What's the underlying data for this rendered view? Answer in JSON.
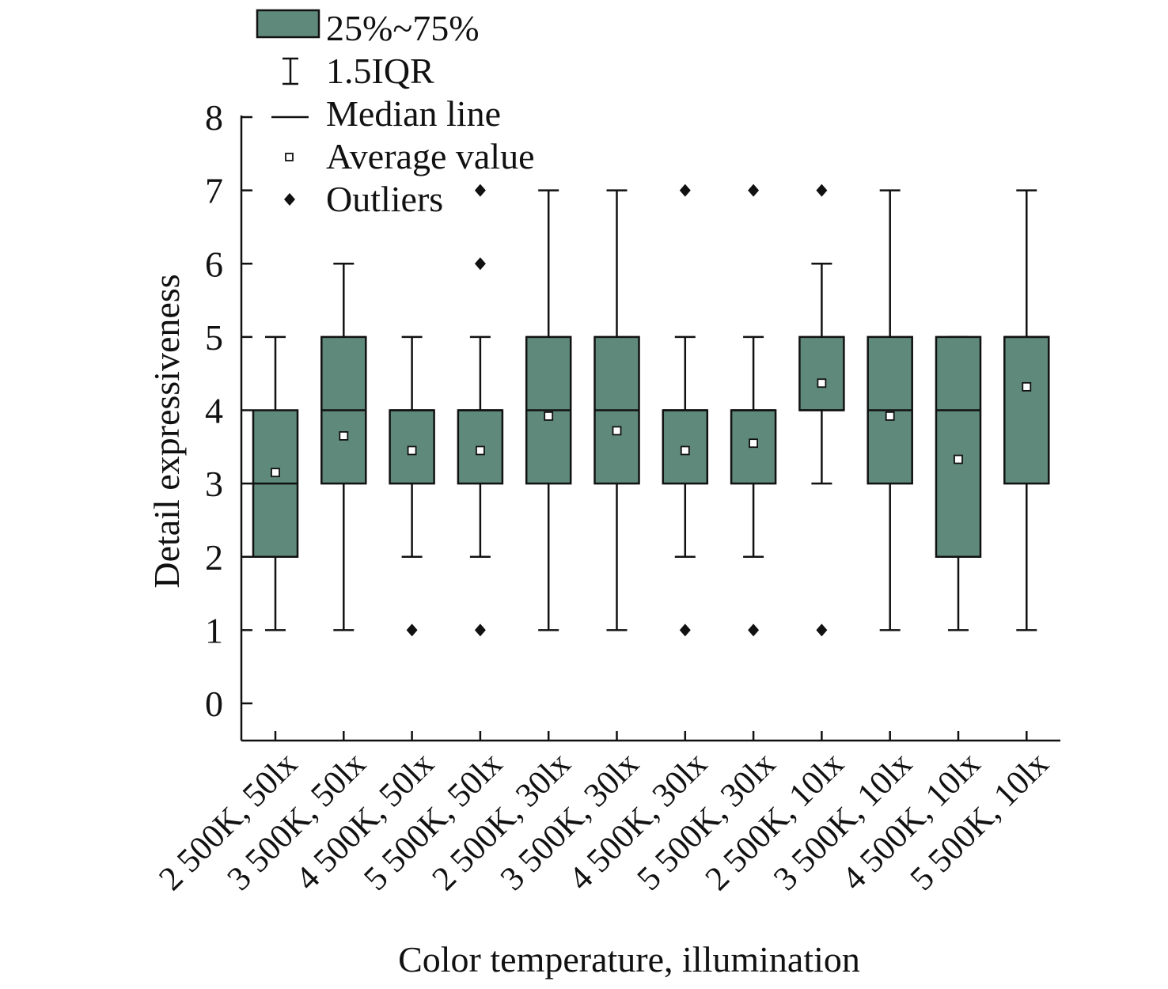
{
  "chart_data": {
    "type": "box",
    "categories": [
      "2 500K, 50lx",
      "3 500K, 50lx",
      "4 500K, 50lx",
      "5 500K, 50lx",
      "2 500K, 30lx",
      "3 500K, 30lx",
      "4 500K, 30lx",
      "5 500K, 30lx",
      "2 500K, 10lx",
      "3 500K, 10lx",
      "4 500K, 10lx",
      "5 500K, 10lx"
    ],
    "boxes": [
      {
        "whisker_low": 1,
        "q1": 2,
        "median": 3,
        "q3": 4,
        "whisker_high": 5,
        "mean": 3.15,
        "outliers": []
      },
      {
        "whisker_low": 1,
        "q1": 3,
        "median": 4,
        "q3": 5,
        "whisker_high": 6,
        "mean": 3.65,
        "outliers": []
      },
      {
        "whisker_low": 2,
        "q1": 3,
        "median": 4,
        "q3": 4,
        "whisker_high": 5,
        "mean": 3.45,
        "outliers": [
          1
        ]
      },
      {
        "whisker_low": 2,
        "q1": 3,
        "median": 4,
        "q3": 4,
        "whisker_high": 5,
        "mean": 3.45,
        "outliers": [
          1,
          6,
          7
        ]
      },
      {
        "whisker_low": 1,
        "q1": 3,
        "median": 4,
        "q3": 5,
        "whisker_high": 7,
        "mean": 3.92,
        "outliers": []
      },
      {
        "whisker_low": 1,
        "q1": 3,
        "median": 4,
        "q3": 5,
        "whisker_high": 7,
        "mean": 3.72,
        "outliers": []
      },
      {
        "whisker_low": 2,
        "q1": 3,
        "median": 4,
        "q3": 4,
        "whisker_high": 5,
        "mean": 3.45,
        "outliers": [
          1,
          7
        ]
      },
      {
        "whisker_low": 2,
        "q1": 3,
        "median": 4,
        "q3": 4,
        "whisker_high": 5,
        "mean": 3.55,
        "outliers": [
          1,
          7
        ]
      },
      {
        "whisker_low": 3,
        "q1": 4,
        "median": 4,
        "q3": 5,
        "whisker_high": 6,
        "mean": 4.37,
        "outliers": [
          1,
          7
        ]
      },
      {
        "whisker_low": 1,
        "q1": 3,
        "median": 4,
        "q3": 5,
        "whisker_high": 7,
        "mean": 3.92,
        "outliers": []
      },
      {
        "whisker_low": 1,
        "q1": 2,
        "median": 4,
        "q3": 5,
        "whisker_high": 5,
        "mean": 3.33,
        "outliers": []
      },
      {
        "whisker_low": 1,
        "q1": 3,
        "median": 5,
        "q3": 5,
        "whisker_high": 7,
        "mean": 4.32,
        "outliers": []
      }
    ],
    "title": "",
    "xlabel": "Color temperature, illumination",
    "ylabel": "Detail expressiveness",
    "ylim": [
      0,
      8
    ],
    "yticks": [
      "0",
      "1",
      "2",
      "3",
      "4",
      "5",
      "6",
      "7",
      "8"
    ],
    "grid": false,
    "legend_position": "top-left",
    "legend": {
      "box": "25%~75%",
      "whisker": "1.5IQR",
      "median": "Median line",
      "mean": "Average value",
      "outlier": "Outliers"
    },
    "colors": {
      "box_fill": "#5f8a7b",
      "stroke": "#111111"
    }
  }
}
